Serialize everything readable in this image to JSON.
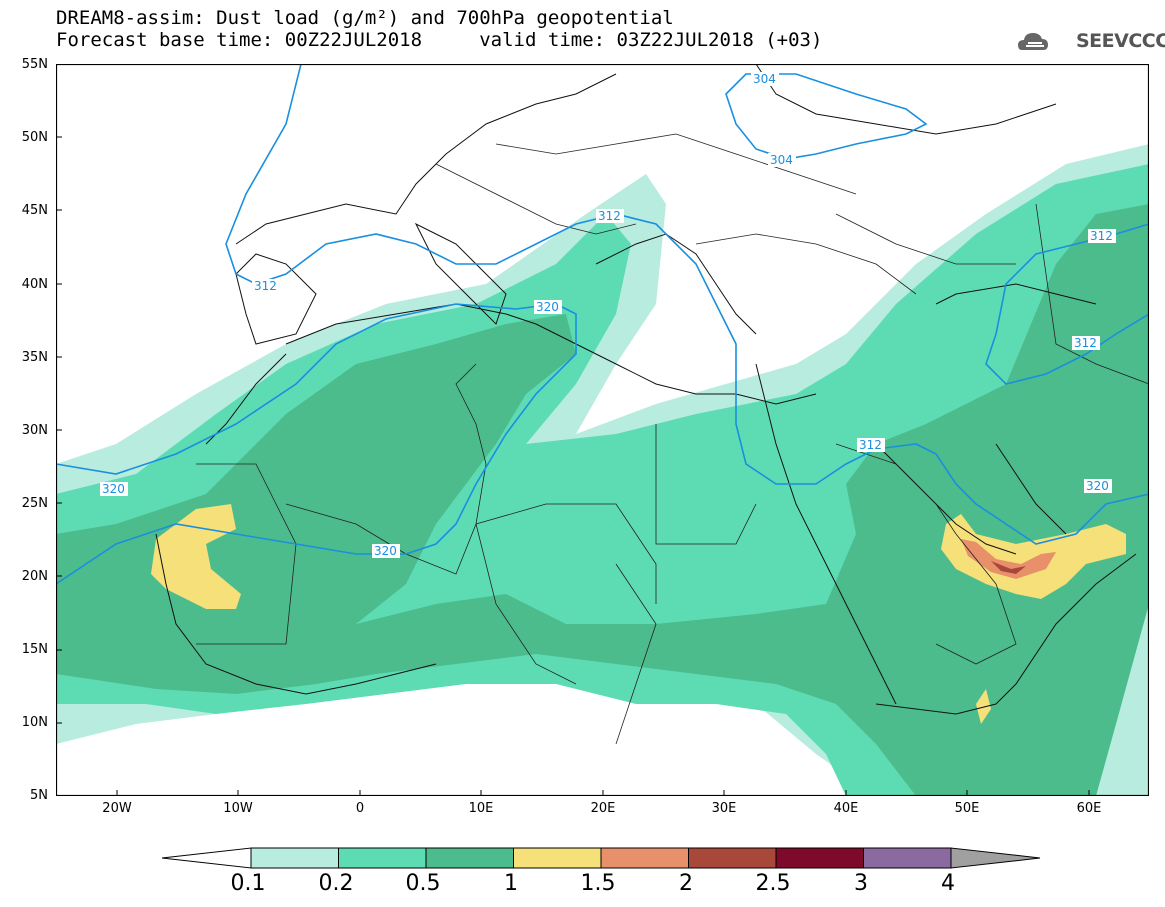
{
  "title": {
    "line1": "DREAM8-assim: Dust load (g/m²) and 700hPa geopotential",
    "line2": "Forecast base time: 00Z22JUL2018     valid time: 03Z22JUL2018 (+03)"
  },
  "logo": {
    "text": "SEEVCCC",
    "icon": "cloud-icon"
  },
  "axes": {
    "lat_labels": [
      "55N",
      "50N",
      "45N",
      "40N",
      "35N",
      "30N",
      "25N",
      "20N",
      "15N",
      "10N",
      "5N"
    ],
    "lon_labels": [
      "20W",
      "10W",
      "0",
      "10E",
      "20E",
      "30E",
      "40E",
      "50E",
      "60E"
    ],
    "lat_range": [
      5,
      55
    ],
    "lon_range": [
      -25,
      65
    ]
  },
  "contour_labels": [
    "304",
    "304",
    "312",
    "312",
    "312",
    "312",
    "312",
    "320",
    "320",
    "320",
    "320"
  ],
  "colorbar": {
    "ticks": [
      "0.1",
      "0.2",
      "0.5",
      "1",
      "1.5",
      "2",
      "2.5",
      "3",
      "4"
    ],
    "colors": [
      "#b7ecdf",
      "#5ddcb4",
      "#4cbc8c",
      "#f5e07a",
      "#e8906a",
      "#a8483a",
      "#7d0a2a",
      "#8b6aa0"
    ],
    "under_color": "#ffffff",
    "over_color": "#a0a0a0"
  }
}
